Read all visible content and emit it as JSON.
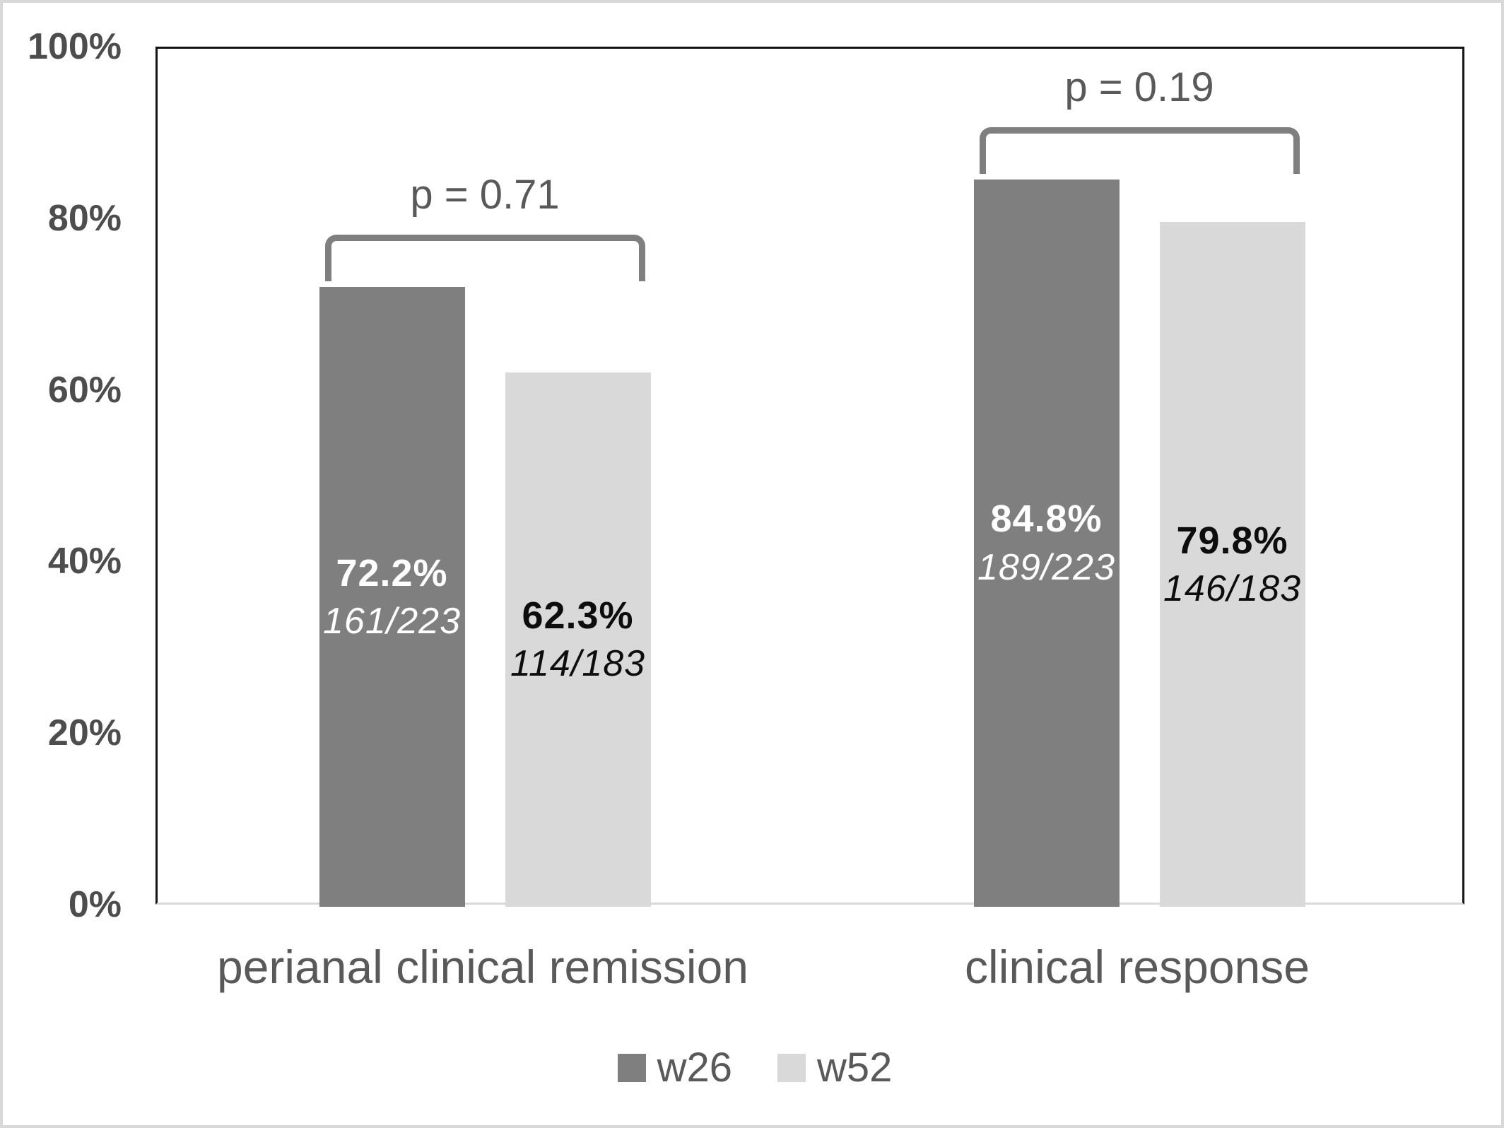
{
  "chart_data": {
    "type": "bar",
    "title": "",
    "categories": [
      "perianal clinical remission",
      "clinical response"
    ],
    "series": [
      {
        "name": "w26",
        "color": "#7f7f7f",
        "label_text_color": "#ffffff",
        "values": [
          72.2,
          84.8
        ],
        "value_labels": [
          "72.2%",
          "84.8%"
        ],
        "fraction_labels": [
          "161/223",
          "189/223"
        ]
      },
      {
        "name": "w52",
        "color": "#d9d9d9",
        "label_text_color": "#0d0d0d",
        "values": [
          62.3,
          79.8
        ],
        "value_labels": [
          "62.3%",
          "79.8%"
        ],
        "fraction_labels": [
          "114/183",
          "146/183"
        ]
      }
    ],
    "p_values": [
      "p = 0.71",
      "p = 0.19"
    ],
    "y_axis": {
      "ticks": [
        {
          "label": "0%",
          "value": 0
        },
        {
          "label": "20%",
          "value": 20
        },
        {
          "label": "40%",
          "value": 40
        },
        {
          "label": "60%",
          "value": 60
        },
        {
          "label": "80%",
          "value": 80
        },
        {
          "label": "100%",
          "value": 100
        }
      ],
      "ylim": [
        0,
        100
      ]
    },
    "legend_position": "bottom",
    "grid": "off",
    "colors": {
      "bracket": "#7f7f7f",
      "axis_line": "#141414",
      "baseline": "#d9d9d9",
      "tick_text": "#4d4d4d",
      "category_text": "#595959",
      "p_text": "#595959",
      "legend_text": "#595959"
    }
  }
}
